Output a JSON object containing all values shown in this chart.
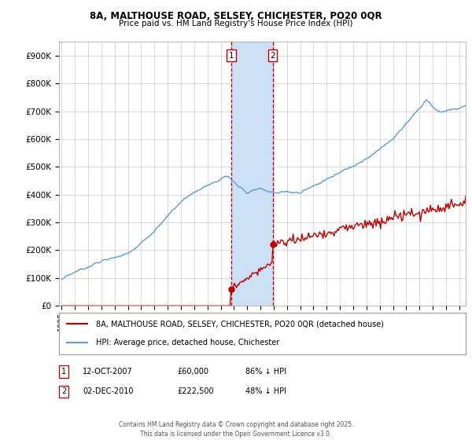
{
  "title1": "8A, MALTHOUSE ROAD, SELSEY, CHICHESTER, PO20 0QR",
  "title2": "Price paid vs. HM Land Registry's House Price Index (HPI)",
  "ylim": [
    0,
    950000
  ],
  "yticks": [
    0,
    100000,
    200000,
    300000,
    400000,
    500000,
    600000,
    700000,
    800000,
    900000
  ],
  "ytick_labels": [
    "£0",
    "£100K",
    "£200K",
    "£300K",
    "£400K",
    "£500K",
    "£600K",
    "£700K",
    "£800K",
    "£900K"
  ],
  "hpi_color": "#5b9bd5",
  "price_color": "#c00000",
  "sale1_date_x": 2007.78,
  "sale1_price": 60000,
  "sale2_date_x": 2010.92,
  "sale2_price": 222500,
  "shade_color": "#cce0f5",
  "legend_label_price": "8A, MALTHOUSE ROAD, SELSEY, CHICHESTER, PO20 0QR (detached house)",
  "legend_label_hpi": "HPI: Average price, detached house, Chichester",
  "table_row1": [
    "1",
    "12-OCT-2007",
    "£60,000",
    "86% ↓ HPI"
  ],
  "table_row2": [
    "2",
    "02-DEC-2010",
    "£222,500",
    "48% ↓ HPI"
  ],
  "footer": "Contains HM Land Registry data © Crown copyright and database right 2025.\nThis data is licensed under the Open Government Licence v3.0.",
  "bg_color": "#ffffff",
  "grid_color": "#cccccc",
  "xlim_left": 1994.8,
  "xlim_right": 2025.5
}
